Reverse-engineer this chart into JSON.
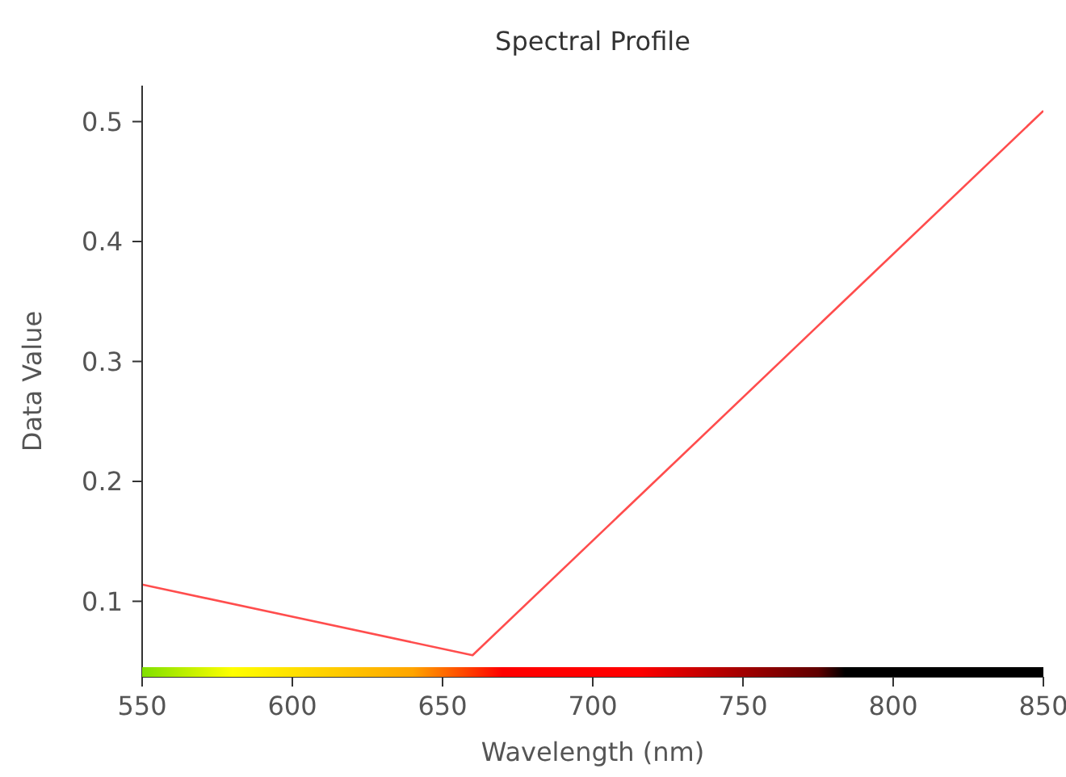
{
  "chart_data": {
    "type": "line",
    "title": "Spectral Profile",
    "xlabel": "Wavelength (nm)",
    "ylabel": "Data Value",
    "x": [
      550,
      660,
      850
    ],
    "series": [
      {
        "color": "#ff4d4d",
        "values": [
          0.114,
          0.055,
          0.509
        ]
      }
    ],
    "xlim": [
      550,
      850
    ],
    "xticks": [
      550,
      600,
      650,
      700,
      750,
      800,
      850
    ],
    "ylim": [
      0.037,
      0.53
    ],
    "yticks": [
      0.1,
      0.2,
      0.3,
      0.4,
      0.5
    ],
    "grid": false,
    "legend": false,
    "marker": "none",
    "line_style": "solid"
  }
}
